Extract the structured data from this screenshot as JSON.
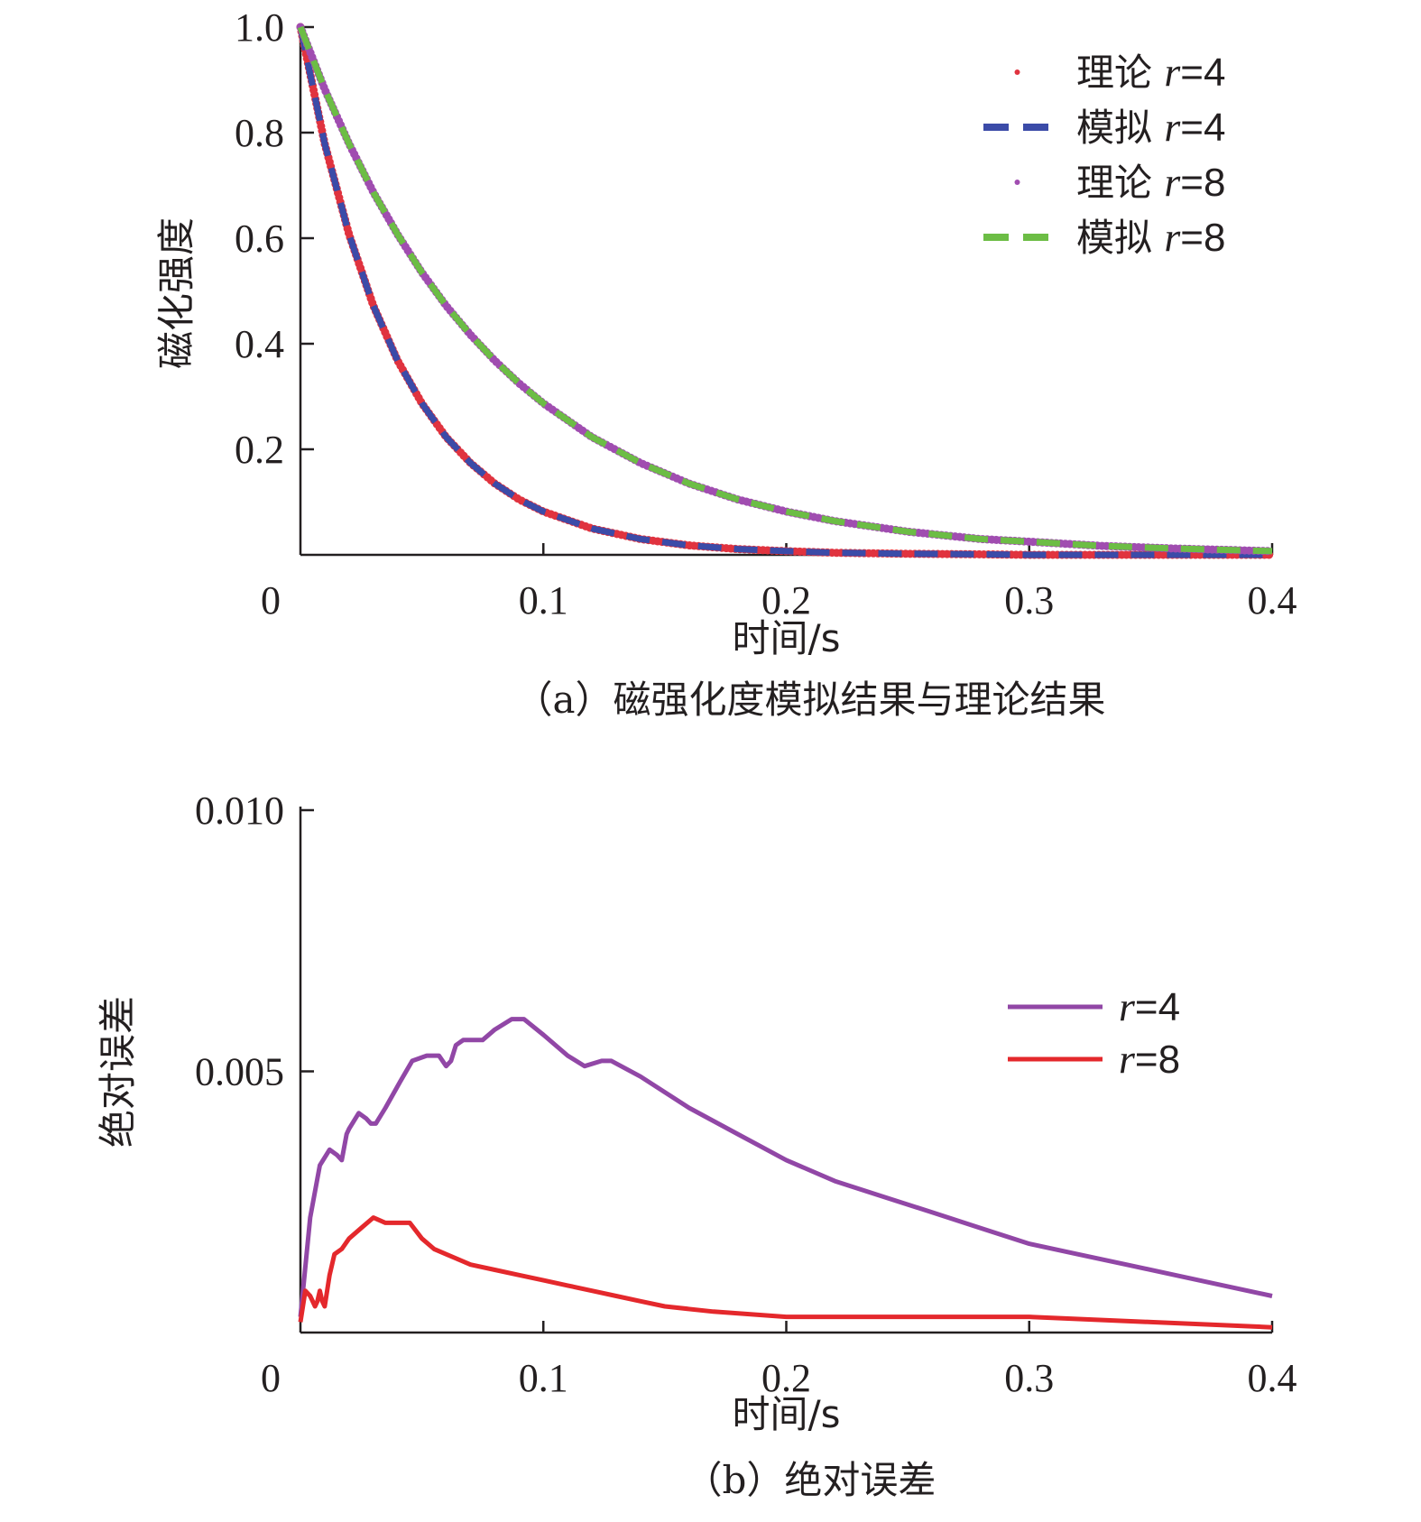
{
  "chart_data": [
    {
      "panel": "a",
      "type": "line",
      "caption": "（a）磁强化度模拟结果与理论结果",
      "xlabel": "时间/s",
      "ylabel": "磁化强度",
      "xlim": [
        0,
        0.4
      ],
      "ylim": [
        0,
        1.0
      ],
      "x_origin_label": "0",
      "xticks": [
        0.1,
        0.2,
        0.3,
        0.4
      ],
      "xtick_labels": [
        "0.1",
        "0.2",
        "0.3",
        "0.4"
      ],
      "yticks": [
        0.2,
        0.4,
        0.6,
        0.8,
        1.0
      ],
      "ytick_labels": [
        "0.2",
        "0.4",
        "0.6",
        "0.8",
        "1.0"
      ],
      "grid": false,
      "legend_position": "top-right",
      "x": [
        0,
        0.01,
        0.02,
        0.03,
        0.04,
        0.05,
        0.06,
        0.07,
        0.08,
        0.09,
        0.1,
        0.12,
        0.14,
        0.16,
        0.18,
        0.2,
        0.22,
        0.25,
        0.28,
        0.3,
        0.33,
        0.36,
        0.4
      ],
      "series": [
        {
          "legend_prefix": "理论",
          "legend_var": "r",
          "legend_suffix": "=4",
          "style": "dotted",
          "color": "#e0333f",
          "values": [
            1.0,
            0.779,
            0.607,
            0.472,
            0.368,
            0.287,
            0.223,
            0.174,
            0.135,
            0.105,
            0.082,
            0.05,
            0.03,
            0.018,
            0.011,
            0.007,
            0.004,
            0.002,
            0.001,
            0.0,
            0.0,
            0.0,
            0.0
          ]
        },
        {
          "legend_prefix": "模拟",
          "legend_var": "r",
          "legend_suffix": "=4",
          "style": "dashed",
          "color": "#3b4ba8",
          "values": [
            1.0,
            0.779,
            0.607,
            0.472,
            0.368,
            0.287,
            0.223,
            0.174,
            0.135,
            0.105,
            0.082,
            0.05,
            0.03,
            0.018,
            0.011,
            0.007,
            0.004,
            0.002,
            0.001,
            0.0,
            0.0,
            0.0,
            0.0
          ]
        },
        {
          "legend_prefix": "理论",
          "legend_var": "r",
          "legend_suffix": "=8",
          "style": "dotted",
          "color": "#a04db0",
          "values": [
            1.0,
            0.882,
            0.779,
            0.687,
            0.607,
            0.535,
            0.472,
            0.417,
            0.368,
            0.325,
            0.287,
            0.223,
            0.174,
            0.135,
            0.105,
            0.082,
            0.064,
            0.044,
            0.03,
            0.025,
            0.017,
            0.012,
            0.007
          ]
        },
        {
          "legend_prefix": "模拟",
          "legend_var": "r",
          "legend_suffix": "=8",
          "style": "dashed",
          "color": "#6cbd45",
          "values": [
            1.0,
            0.882,
            0.779,
            0.687,
            0.607,
            0.535,
            0.472,
            0.417,
            0.368,
            0.325,
            0.287,
            0.223,
            0.174,
            0.135,
            0.105,
            0.082,
            0.064,
            0.044,
            0.03,
            0.025,
            0.017,
            0.012,
            0.007
          ]
        }
      ]
    },
    {
      "panel": "b",
      "type": "line",
      "caption": "（b）绝对误差",
      "xlabel": "时间/s",
      "ylabel": "绝对误差",
      "xlim": [
        0,
        0.4
      ],
      "ylim": [
        0,
        0.01
      ],
      "x_origin_label": "0",
      "xticks": [
        0.1,
        0.2,
        0.3,
        0.4
      ],
      "xtick_labels": [
        "0.1",
        "0.2",
        "0.3",
        "0.4"
      ],
      "yticks": [
        0.005,
        0.01
      ],
      "ytick_labels": [
        "0.005",
        "0.010"
      ],
      "grid": false,
      "legend_position": "right",
      "series": [
        {
          "legend_var": "r",
          "legend_suffix": "=4",
          "color": "#9147a6",
          "x": [
            0.0,
            0.004,
            0.008,
            0.012,
            0.015,
            0.017,
            0.019,
            0.02,
            0.024,
            0.027,
            0.029,
            0.031,
            0.035,
            0.041,
            0.046,
            0.052,
            0.057,
            0.06,
            0.062,
            0.064,
            0.067,
            0.07,
            0.075,
            0.08,
            0.087,
            0.092,
            0.1,
            0.11,
            0.117,
            0.124,
            0.128,
            0.14,
            0.16,
            0.18,
            0.2,
            0.22,
            0.24,
            0.26,
            0.28,
            0.3,
            0.32,
            0.34,
            0.36,
            0.38,
            0.4
          ],
          "values": [
            0.0003,
            0.0022,
            0.0032,
            0.0035,
            0.0034,
            0.0033,
            0.0038,
            0.0039,
            0.0042,
            0.0041,
            0.004,
            0.004,
            0.0043,
            0.0048,
            0.0052,
            0.0053,
            0.0053,
            0.0051,
            0.0052,
            0.0055,
            0.0056,
            0.0056,
            0.0056,
            0.0058,
            0.006,
            0.006,
            0.0057,
            0.0053,
            0.0051,
            0.0052,
            0.0052,
            0.0049,
            0.0043,
            0.0038,
            0.0033,
            0.0029,
            0.0026,
            0.0023,
            0.002,
            0.0017,
            0.0015,
            0.0013,
            0.0011,
            0.0009,
            0.0007
          ]
        },
        {
          "legend_var": "r",
          "legend_suffix": "=8",
          "color": "#e4282c",
          "x": [
            0.0,
            0.002,
            0.004,
            0.006,
            0.007,
            0.008,
            0.009,
            0.01,
            0.012,
            0.014,
            0.017,
            0.02,
            0.025,
            0.03,
            0.035,
            0.04,
            0.045,
            0.05,
            0.055,
            0.06,
            0.065,
            0.07,
            0.08,
            0.09,
            0.1,
            0.11,
            0.12,
            0.13,
            0.14,
            0.15,
            0.17,
            0.2,
            0.25,
            0.3,
            0.35,
            0.4
          ],
          "values": [
            0.0002,
            0.0008,
            0.0007,
            0.0005,
            0.0006,
            0.0008,
            0.0006,
            0.0005,
            0.0011,
            0.0015,
            0.0016,
            0.0018,
            0.002,
            0.0022,
            0.0021,
            0.0021,
            0.0021,
            0.0018,
            0.0016,
            0.0015,
            0.0014,
            0.0013,
            0.0012,
            0.0011,
            0.001,
            0.0009,
            0.0008,
            0.0007,
            0.0006,
            0.0005,
            0.0004,
            0.0003,
            0.0003,
            0.0003,
            0.0002,
            0.0001
          ]
        }
      ]
    }
  ]
}
